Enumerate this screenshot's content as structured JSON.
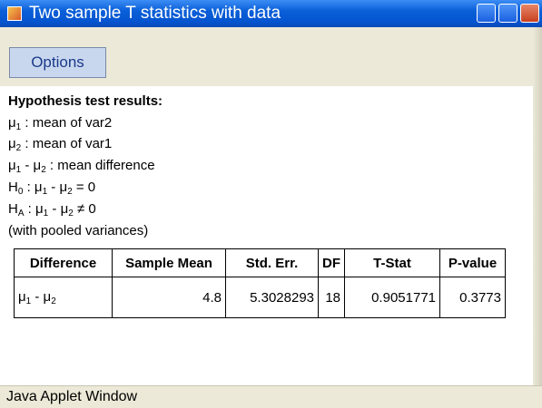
{
  "window": {
    "title": "Two sample T statistics with data",
    "status": "Java Applet Window"
  },
  "toolbar": {
    "button": "Options"
  },
  "results": {
    "heading": "Hypothesis test results:",
    "lines": [
      [
        {
          "t": "μ"
        },
        {
          "sub": "1"
        },
        {
          "t": " : mean of var2"
        }
      ],
      [
        {
          "t": "μ"
        },
        {
          "sub": "2"
        },
        {
          "t": " : mean of var1"
        }
      ],
      [
        {
          "t": "μ"
        },
        {
          "sub": "1"
        },
        {
          "t": " - μ"
        },
        {
          "sub": "2"
        },
        {
          "t": " : mean difference"
        }
      ],
      [
        {
          "t": "H"
        },
        {
          "sub": "0"
        },
        {
          "t": " : μ"
        },
        {
          "sub": "1"
        },
        {
          "t": " - μ"
        },
        {
          "sub": "2"
        },
        {
          "t": " = 0"
        }
      ],
      [
        {
          "t": "H"
        },
        {
          "sub": "A"
        },
        {
          "t": " : μ"
        },
        {
          "sub": "1"
        },
        {
          "t": " - μ"
        },
        {
          "sub": "2"
        },
        {
          "t": " ≠ 0"
        }
      ],
      [
        {
          "t": "(with pooled variances)"
        }
      ]
    ]
  },
  "table": {
    "headers": [
      "Difference",
      "Sample Mean",
      "Std. Err.",
      "DF",
      "T-Stat",
      "P-value"
    ],
    "rows": [
      [
        [
          {
            "t": "μ"
          },
          {
            "sub": "1"
          },
          {
            "t": " - μ"
          },
          {
            "sub": "2"
          }
        ],
        4.8,
        5.3028293,
        18,
        0.9051771,
        0.3773
      ]
    ]
  }
}
